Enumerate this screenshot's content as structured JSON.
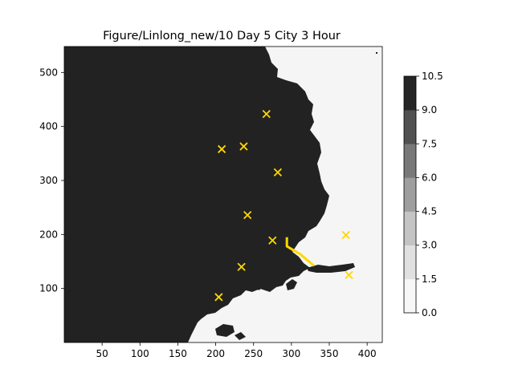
{
  "chart_data": {
    "type": "heatmap",
    "title": "Figure/Linlong_new/10 Day 5 City 3 Hour",
    "xlabel": "",
    "ylabel": "",
    "xlim": [
      0,
      420
    ],
    "ylim": [
      0,
      548
    ],
    "x_ticks": [
      50,
      100,
      150,
      200,
      250,
      300,
      350,
      400
    ],
    "y_ticks": [
      100,
      200,
      300,
      400,
      500
    ],
    "colorbar": {
      "levels": [
        0.0,
        1.5,
        3.0,
        4.5,
        6.0,
        7.5,
        9.0,
        10.5
      ],
      "tick_labels": [
        "0.0",
        "1.5",
        "3.0",
        "4.5",
        "6.0",
        "7.5",
        "9.0",
        "10.5"
      ],
      "colors": [
        "#f7f7f7",
        "#e0e0e0",
        "#c4c4c4",
        "#9e9e9e",
        "#787878",
        "#515151",
        "#252525"
      ]
    },
    "field_colors": {
      "land_value_color": "#222222",
      "sea_value_color": "#f5f5f5"
    },
    "marker_color": "#ffd700",
    "markers": [
      {
        "x": 267,
        "y": 423
      },
      {
        "x": 208,
        "y": 358
      },
      {
        "x": 237,
        "y": 363
      },
      {
        "x": 282,
        "y": 315
      },
      {
        "x": 242,
        "y": 236
      },
      {
        "x": 275,
        "y": 189
      },
      {
        "x": 372,
        "y": 199
      },
      {
        "x": 234,
        "y": 140
      },
      {
        "x": 376,
        "y": 125
      },
      {
        "x": 204,
        "y": 84
      }
    ],
    "route": [
      {
        "x": 294,
        "y": 195
      },
      {
        "x": 294,
        "y": 178
      },
      {
        "x": 312,
        "y": 163
      },
      {
        "x": 330,
        "y": 142
      }
    ]
  }
}
